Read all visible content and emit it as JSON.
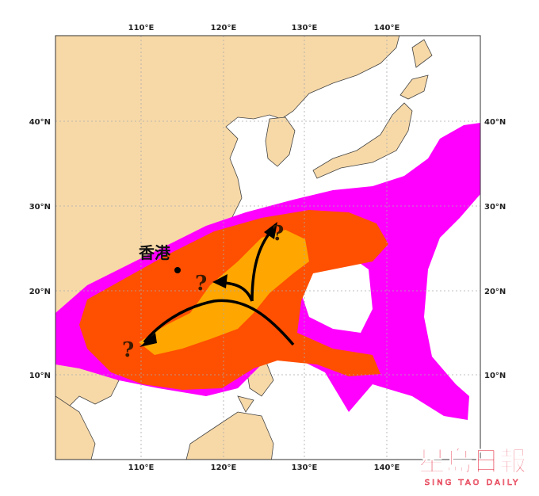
{
  "map": {
    "lon_labels": [
      "110°E",
      "120°E",
      "130°E",
      "140°E"
    ],
    "lat_labels": [
      "40°N",
      "30°N",
      "20°N",
      "10°N"
    ],
    "city_label": "香港",
    "question_marks": [
      "?",
      "?",
      "?"
    ]
  },
  "logo": {
    "name": "星島日報",
    "tagline": "SING TAO DAILY"
  }
}
